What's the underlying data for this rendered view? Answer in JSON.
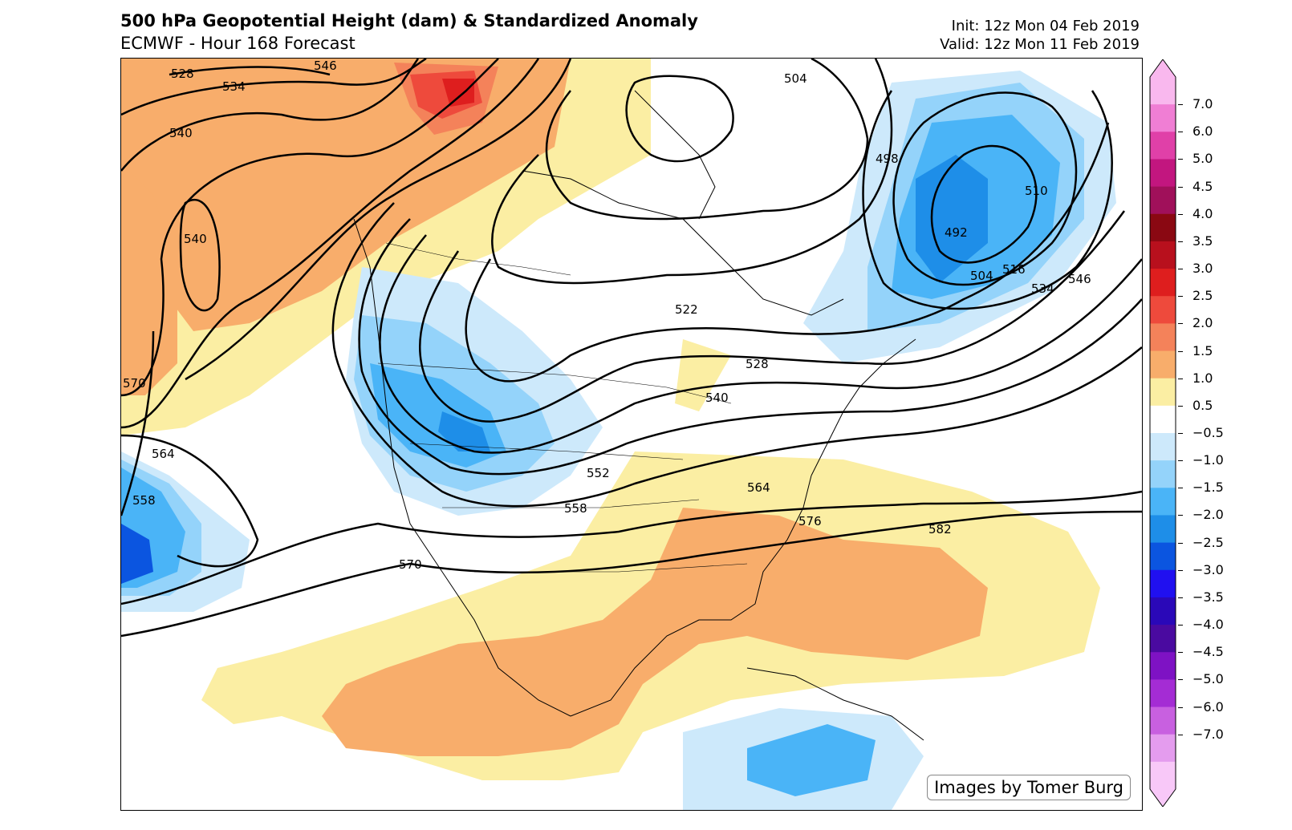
{
  "header": {
    "title": "500 hPa Geopotential Height (dam) & Standardized Anomaly",
    "subtitle": "ECMWF - Hour 168 Forecast",
    "init": "Init: 12z Mon 04 Feb 2019",
    "valid": "Valid: 12z Mon 11 Feb 2019"
  },
  "credit": "Images by Tomer Burg",
  "colors": {
    "pos": [
      "#fbeea3",
      "#f8ad6b",
      "#f4825a",
      "#ee4a3c",
      "#de1e1e",
      "#b8101d",
      "#8a0812",
      "#a0105a",
      "#c2167f",
      "#e040a8",
      "#f07ed4",
      "#f9b8ee"
    ],
    "neg": [
      "#cde9fb",
      "#94d3fa",
      "#4ab4f7",
      "#1e8ee8",
      "#0b55e0",
      "#2010f0",
      "#2a08b8",
      "#4a0aa0",
      "#7e12c4",
      "#a42cd4",
      "#c860e0",
      "#e49cee",
      "#f8c8f8"
    ]
  },
  "colorbar_labels": [
    "7.0",
    "6.0",
    "5.0",
    "4.5",
    "4.0",
    "3.5",
    "3.0",
    "2.5",
    "2.0",
    "1.5",
    "1.0",
    "0.5",
    "−0.5",
    "−1.0",
    "−1.5",
    "−2.0",
    "−2.5",
    "−3.0",
    "−3.5",
    "−4.0",
    "−4.5",
    "−5.0",
    "−6.0",
    "−7.0"
  ],
  "contour_labels": [
    "528",
    "534",
    "540",
    "546",
    "540",
    "570",
    "564",
    "558",
    "504",
    "498",
    "492",
    "510",
    "504",
    "516",
    "534",
    "546",
    "522",
    "528",
    "540",
    "552",
    "564",
    "558",
    "576",
    "582",
    "570"
  ]
}
